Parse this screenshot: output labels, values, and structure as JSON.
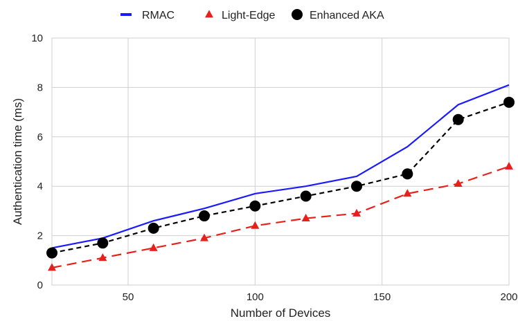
{
  "chart_data": {
    "type": "line",
    "title": "",
    "xlabel": "Number of Devices",
    "ylabel": "Authentication time (ms)",
    "xlim": [
      20,
      200
    ],
    "ylim": [
      0,
      10
    ],
    "x_ticks": [
      50,
      100,
      150,
      200
    ],
    "y_ticks": [
      0,
      2,
      4,
      6,
      8,
      10
    ],
    "grid": true,
    "legend_position": "top",
    "x": [
      20,
      40,
      60,
      80,
      100,
      120,
      140,
      160,
      180,
      200
    ],
    "series": [
      {
        "name": "RMAC",
        "color": "#1a1aff",
        "style": "solid",
        "marker": "none",
        "values": [
          1.5,
          1.9,
          2.6,
          3.1,
          3.7,
          4.0,
          4.4,
          5.6,
          7.3,
          8.1
        ]
      },
      {
        "name": "Light-Edge",
        "color": "#e8201c",
        "style": "dashed",
        "marker": "triangle",
        "values": [
          0.7,
          1.1,
          1.5,
          1.9,
          2.4,
          2.7,
          2.9,
          3.7,
          4.1,
          4.8
        ]
      },
      {
        "name": "Enhanced AKA",
        "color": "#000000",
        "style": "dashed",
        "marker": "circle",
        "values": [
          1.3,
          1.7,
          2.3,
          2.8,
          3.2,
          3.6,
          4.0,
          4.5,
          6.7,
          7.4
        ]
      }
    ]
  }
}
